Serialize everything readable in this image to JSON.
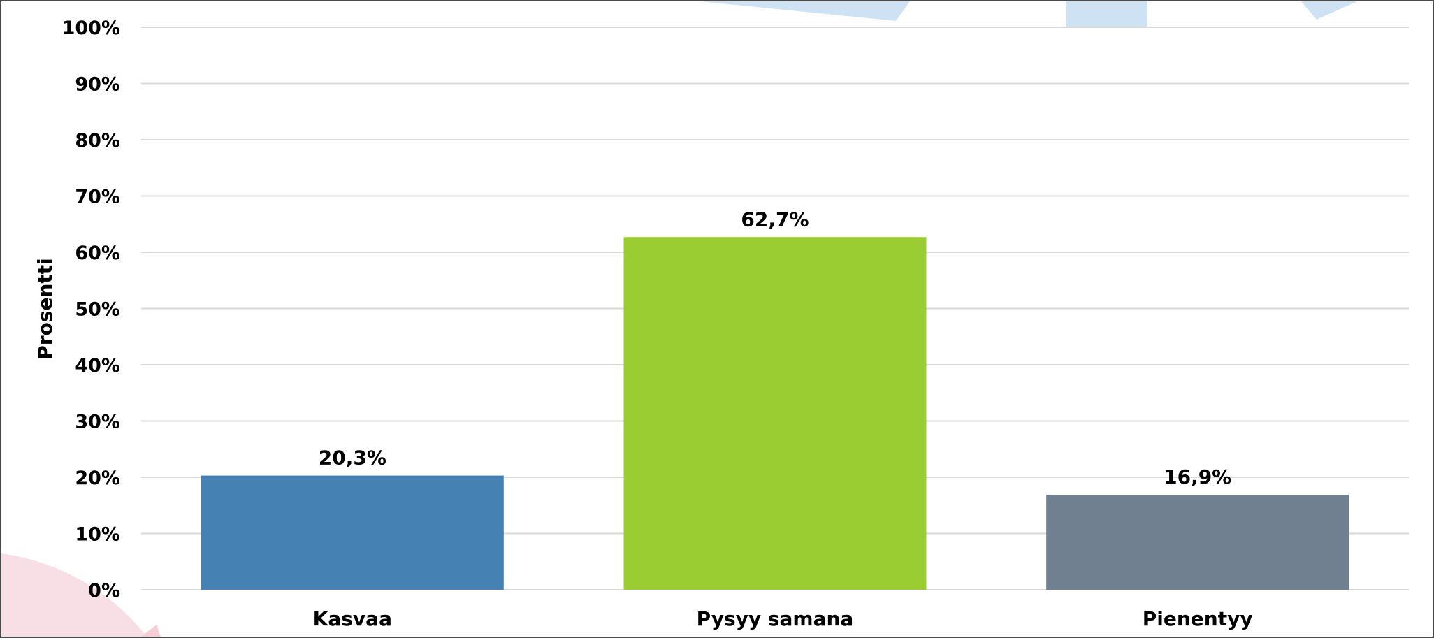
{
  "chart_data": {
    "type": "bar",
    "categories": [
      "Kasvaa",
      "Pysyy samana",
      "Pienentyy"
    ],
    "values": [
      20.3,
      62.7,
      16.9
    ],
    "value_labels": [
      "20,3%",
      "62,7%",
      "16,9%"
    ],
    "colors": [
      "#4681b4",
      "#9acd32",
      "#708090"
    ],
    "title": "",
    "xlabel": "",
    "ylabel": "Prosentti",
    "ylim": [
      0,
      100
    ],
    "yticks": [
      0,
      10,
      20,
      30,
      40,
      50,
      60,
      70,
      80,
      90,
      100
    ],
    "ytick_labels": [
      "0%",
      "10%",
      "20%",
      "30%",
      "40%",
      "50%",
      "60%",
      "70%",
      "80%",
      "90%",
      "100%"
    ],
    "grid": true,
    "legend": "none",
    "gridline_color": "#d9d9d9"
  }
}
